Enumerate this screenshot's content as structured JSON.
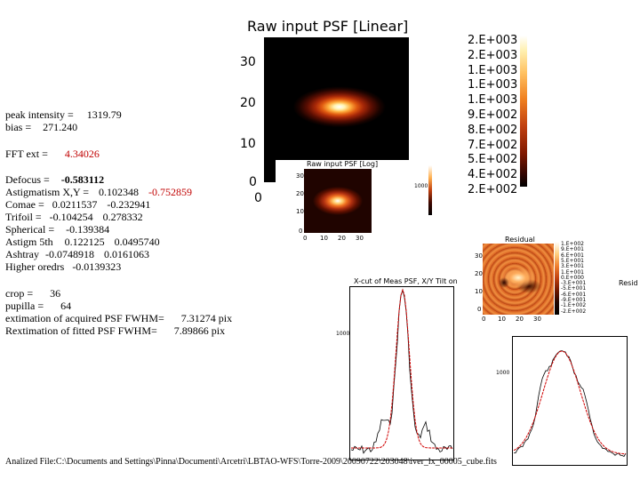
{
  "main_plot": {
    "title": "Raw input PSF [Linear]",
    "y_ticks": [
      "30",
      "20",
      "10",
      "0"
    ],
    "x_ticks": [
      "0"
    ],
    "colorbar": [
      "2.E+003",
      "2.E+003",
      "1.E+003",
      "1.E+003",
      "1.E+003",
      "9.E+002",
      "8.E+002",
      "7.E+002",
      "5.E+002",
      "4.E+002",
      "2.E+002"
    ]
  },
  "log_plot": {
    "title": "Raw input PSF [Log]",
    "x_ticks": [
      "0",
      "10",
      "20",
      "30"
    ],
    "y_ticks": [
      "30",
      "20",
      "10",
      "0"
    ],
    "colorbar_label": "1000"
  },
  "residual_plot": {
    "title": "Residual",
    "y_ticks": [
      "30",
      "20",
      "10",
      "0"
    ],
    "x_ticks": [
      "0",
      "10",
      "20",
      "30"
    ],
    "colorbar": [
      "1.E+002",
      "9.E+001",
      "6.E+001",
      "5.E+001",
      "3.E+001",
      "1.E+001",
      "0.E+000",
      "-3.E+001",
      "-5.E+001",
      "-6.E+001",
      "-9.E+001",
      "-1.E+002",
      "-2.E+002"
    ],
    "side_label": "Resid"
  },
  "xcut_plot": {
    "title": "X-cut of Meas PSF, X/Y Tilt on",
    "y_label": "1000"
  },
  "ycut_plot": {
    "y_label": "1000"
  },
  "stats": {
    "peak_label": "peak intensity =",
    "peak_value": "1319.79",
    "bias_label": "bias =",
    "bias_value": "271.240",
    "fft_label": "FFT ext =",
    "fft_value": "4.34026"
  },
  "aberrations": {
    "defocus_label": "Defocus =",
    "defocus_value": "-0.583112",
    "astig_label": "Astigmatism X,Y =",
    "astig_x": "0.102348",
    "astig_y": "-0.752859",
    "coma_label": "Comae =",
    "coma_x": "0.0211537",
    "coma_y": "-0.232941",
    "trifoil_label": "Trifoil =",
    "trifoil_x": "-0.104254",
    "trifoil_y": "0.278332",
    "spherical_label": "Spherical =",
    "spherical_value": "-0.139384",
    "astig5_label": "Astigm 5th",
    "astig5_x": "0.122125",
    "astig5_y": "0.0495740",
    "ashtray_label": "Ashtray",
    "ashtray_x": "-0.0748918",
    "ashtray_y": "0.0161063",
    "higher_label": "Higher oredrs",
    "higher_value": "-0.0139323"
  },
  "params": {
    "crop_label": "crop =",
    "crop_value": "36",
    "pupilla_label": "pupilla =",
    "pupilla_value": "64",
    "acq_label": "extimation of acquired PSF FWHM=",
    "acq_value": "7.31274 pix",
    "fit_label": "Rextimation of fitted PSF FWHM=",
    "fit_value": "7.89866 pix"
  },
  "footer": {
    "analyzed_file": "Analized File:C:\\Documents and Settings\\Pinna\\Documenti\\Arcetri\\LBTAO-WFS\\Torre-2009\\20090722\\203048\\iver_lx_00005_cube.fits"
  }
}
